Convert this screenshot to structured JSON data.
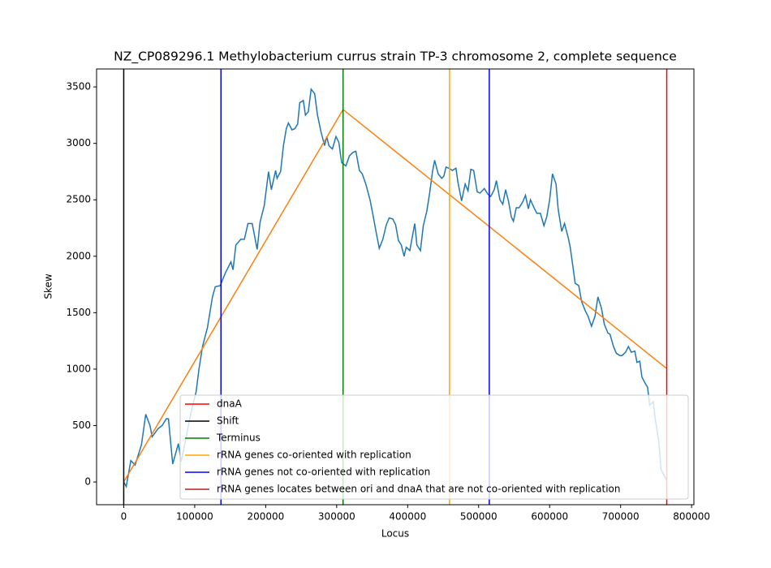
{
  "chart_data": {
    "type": "line",
    "title": "NZ_CP089296.1 Methylobacterium currus strain TP-3 chromosome 2, complete sequence",
    "xlabel": "Locus",
    "ylabel": "Skew",
    "xlim": [
      -38250,
      803250
    ],
    "ylim": [
      -201,
      3659
    ],
    "xticks": [
      0,
      100000,
      200000,
      300000,
      400000,
      500000,
      600000,
      700000,
      800000
    ],
    "yticks": [
      0,
      500,
      1000,
      1500,
      2000,
      2500,
      3000,
      3500
    ],
    "grid": false,
    "legend_position": "lower right",
    "series": [
      {
        "color": "#1f77b4",
        "x": [
          0,
          3500,
          10000,
          16000,
          25000,
          31000,
          37000,
          40000,
          48000,
          54000,
          60000,
          63000,
          69000,
          77000,
          81000,
          88000,
          96000,
          102000,
          106000,
          111000,
          118000,
          125000,
          129000,
          136000,
          143000,
          151000,
          154000,
          158000,
          165000,
          170000,
          175000,
          181000,
          188000,
          192000,
          198000,
          200000,
          204000,
          208000,
          214000,
          216000,
          221000,
          225000,
          229000,
          232000,
          237000,
          241000,
          245000,
          248000,
          253000,
          256000,
          260000,
          264000,
          269000,
          273000,
          278000,
          283000,
          286000,
          289000,
          294000,
          299000,
          303000,
          307000,
          313000,
          318000,
          323000,
          327000,
          332000,
          336000,
          341000,
          347000,
          351000,
          356000,
          360000,
          365000,
          370000,
          374000,
          379000,
          383000,
          387000,
          391000,
          395000,
          398000,
          403000,
          410000,
          413000,
          418000,
          422000,
          427000,
          431000,
          435000,
          438000,
          443000,
          448000,
          451000,
          454000,
          458000,
          463000,
          468000,
          471000,
          476000,
          481000,
          485000,
          489000,
          493000,
          498000,
          502000,
          508000,
          513000,
          517000,
          522000,
          525000,
          530000,
          534000,
          538000,
          542000,
          546000,
          549000,
          553000,
          557000,
          562000,
          566000,
          570000,
          573000,
          578000,
          582000,
          587000,
          592000,
          596000,
          600000,
          604000,
          609000,
          612000,
          617000,
          621000,
          626000,
          629000,
          633000,
          636000,
          641000,
          645000,
          650000,
          654000,
          659000,
          664000,
          668000,
          673000,
          677000,
          682000,
          685000,
          690000,
          694000,
          699000,
          702000,
          707000,
          711000,
          715000,
          720000,
          723000,
          727000,
          730000,
          735000,
          738000,
          741000,
          746000,
          749000,
          754000,
          757000,
          762000,
          765000
        ],
        "values": [
          0,
          -40,
          190,
          150,
          330,
          600,
          500,
          400,
          470,
          500,
          560,
          560,
          160,
          340,
          180,
          400,
          650,
          800,
          1000,
          1200,
          1370,
          1640,
          1730,
          1740,
          1850,
          1950,
          1880,
          2100,
          2150,
          2150,
          2290,
          2290,
          2060,
          2300,
          2450,
          2550,
          2750,
          2590,
          2760,
          2690,
          2750,
          2980,
          3130,
          3180,
          3120,
          3130,
          3170,
          3360,
          3380,
          3250,
          3280,
          3480,
          3440,
          3250,
          3100,
          2980,
          3060,
          2980,
          2950,
          3060,
          3010,
          2830,
          2800,
          2890,
          2920,
          2930,
          2760,
          2730,
          2640,
          2500,
          2370,
          2200,
          2070,
          2150,
          2280,
          2340,
          2330,
          2280,
          2140,
          2100,
          2000,
          2080,
          2050,
          2290,
          2100,
          2050,
          2270,
          2400,
          2560,
          2750,
          2850,
          2730,
          2690,
          2710,
          2790,
          2780,
          2760,
          2780,
          2650,
          2490,
          2640,
          2580,
          2770,
          2760,
          2570,
          2560,
          2600,
          2550,
          2530,
          2590,
          2670,
          2500,
          2460,
          2590,
          2490,
          2350,
          2310,
          2430,
          2430,
          2480,
          2540,
          2420,
          2500,
          2430,
          2380,
          2380,
          2270,
          2350,
          2500,
          2730,
          2640,
          2420,
          2220,
          2290,
          2170,
          2080,
          1900,
          1760,
          1740,
          1600,
          1520,
          1470,
          1380,
          1470,
          1640,
          1540,
          1400,
          1320,
          1310,
          1200,
          1140,
          1120,
          1120,
          1150,
          1200,
          1150,
          1160,
          1060,
          1070,
          930,
          870,
          840,
          680,
          710,
          550,
          350,
          110,
          50,
          10
        ]
      },
      {
        "color": "#ff7f0e",
        "x": [
          0,
          309000,
          765000
        ],
        "values": [
          0,
          3300,
          1005
        ]
      }
    ],
    "vlines": [
      {
        "name": "dnaA",
        "color": "red",
        "positions": [
          765000
        ]
      },
      {
        "name": "Shift",
        "color": "black",
        "positions": [
          0
        ]
      },
      {
        "name": "Terminus",
        "color": "green",
        "positions": [
          309000
        ]
      },
      {
        "name": "rRNA genes co-oriented with replication",
        "color": "orange",
        "positions": [
          459000
        ]
      },
      {
        "name": "rRNA genes not co-oriented with replication",
        "color": "blue",
        "positions": [
          137000,
          515000
        ]
      },
      {
        "name": "rRNA genes locates between ori and dnaA that are not co-oriented with replication",
        "color": "#b22222",
        "positions": []
      }
    ]
  }
}
